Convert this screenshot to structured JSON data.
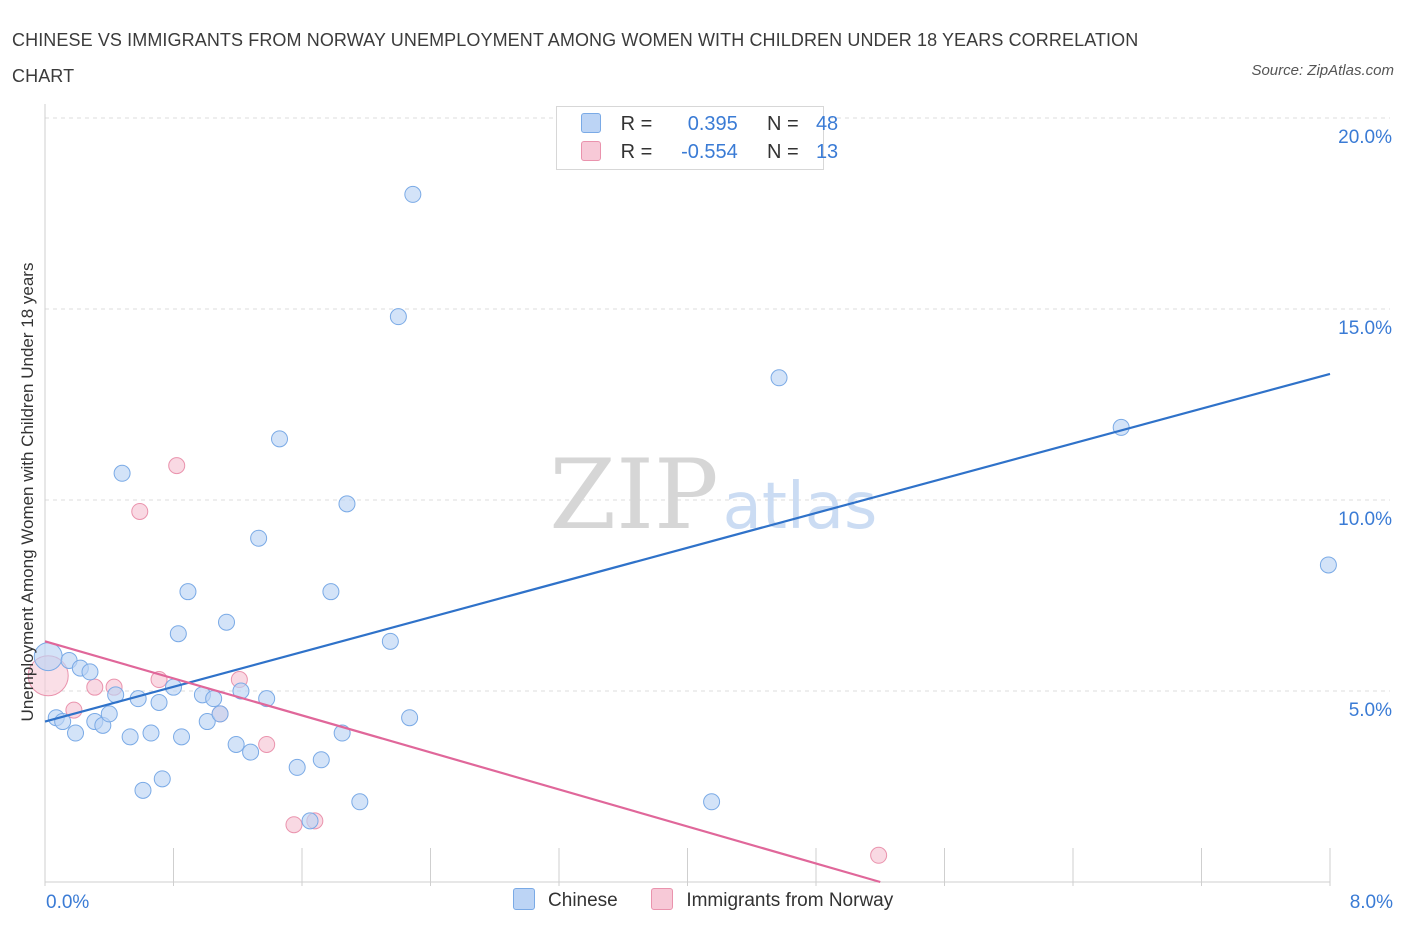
{
  "title": "CHINESE VS IMMIGRANTS FROM NORWAY UNEMPLOYMENT AMONG WOMEN WITH CHILDREN UNDER 18 YEARS CORRELATION CHART",
  "source": "Source: ZipAtlas.com",
  "watermark": {
    "zip": "ZIP",
    "atlas": "atlas"
  },
  "legend": {
    "rows": [
      {
        "r_label": "R =",
        "r_value": "0.395",
        "n_label": "N =",
        "n_value": "48"
      },
      {
        "r_label": "R =",
        "r_value": "-0.554",
        "n_label": "N =",
        "n_value": "13"
      }
    ]
  },
  "colors": {
    "blue_fill": "#bcd4f5",
    "blue_stroke": "#7aaae6",
    "blue_line": "#2f72c9",
    "pink_fill": "#f7c9d7",
    "pink_stroke": "#ea93ad",
    "pink_line": "#e0679a",
    "axis_text": "#3a7bd5",
    "grid": "#dcdcdc"
  },
  "chart_data": {
    "type": "scatter",
    "title": "CHINESE VS IMMIGRANTS FROM NORWAY UNEMPLOYMENT AMONG WOMEN WITH CHILDREN UNDER 18 YEARS CORRELATION CHART",
    "xlabel": "",
    "ylabel": "Unemployment Among Women with Children Under 18 years",
    "xlim": [
      0,
      8
    ],
    "ylim": [
      0,
      20
    ],
    "x_tick_labels": [
      "0.0%",
      "8.0%"
    ],
    "y_ticks": [
      5,
      10,
      15,
      20
    ],
    "y_tick_labels": [
      "5.0%",
      "10.0%",
      "15.0%",
      "20.0%"
    ],
    "legend_position": "top-center",
    "series": [
      {
        "name": "Chinese",
        "color": "#bcd4f5",
        "r": 0.395,
        "n": 48,
        "points": [
          [
            0.02,
            5.9
          ],
          [
            0.07,
            4.3
          ],
          [
            0.11,
            4.2
          ],
          [
            0.15,
            5.8
          ],
          [
            0.19,
            3.9
          ],
          [
            0.22,
            5.6
          ],
          [
            0.28,
            5.5
          ],
          [
            0.31,
            4.2
          ],
          [
            0.36,
            4.1
          ],
          [
            0.4,
            4.4
          ],
          [
            0.44,
            4.9
          ],
          [
            0.48,
            10.7
          ],
          [
            0.53,
            3.8
          ],
          [
            0.58,
            4.8
          ],
          [
            0.61,
            2.4
          ],
          [
            0.66,
            3.9
          ],
          [
            0.71,
            4.7
          ],
          [
            0.73,
            2.7
          ],
          [
            0.8,
            5.1
          ],
          [
            0.83,
            6.5
          ],
          [
            0.85,
            3.8
          ],
          [
            0.89,
            7.6
          ],
          [
            0.98,
            4.9
          ],
          [
            1.01,
            4.2
          ],
          [
            1.05,
            4.8
          ],
          [
            1.09,
            4.4
          ],
          [
            1.13,
            6.8
          ],
          [
            1.19,
            3.6
          ],
          [
            1.22,
            5.0
          ],
          [
            1.28,
            3.4
          ],
          [
            1.33,
            9.0
          ],
          [
            1.38,
            4.8
          ],
          [
            1.46,
            11.6
          ],
          [
            1.57,
            3.0
          ],
          [
            1.65,
            1.6
          ],
          [
            1.72,
            3.2
          ],
          [
            1.78,
            7.6
          ],
          [
            1.85,
            3.9
          ],
          [
            1.88,
            9.9
          ],
          [
            1.96,
            2.1
          ],
          [
            2.15,
            6.3
          ],
          [
            2.2,
            14.8
          ],
          [
            2.27,
            4.3
          ],
          [
            2.29,
            18.0
          ],
          [
            4.15,
            2.1
          ],
          [
            4.57,
            13.2
          ],
          [
            6.7,
            11.9
          ],
          [
            7.99,
            8.3
          ]
        ],
        "trend": {
          "x": [
            0,
            8
          ],
          "y": [
            4.2,
            13.3
          ]
        }
      },
      {
        "name": "Immigrants from Norway",
        "color": "#f7c9d7",
        "r": -0.554,
        "n": 13,
        "points": [
          [
            0.02,
            5.4
          ],
          [
            0.18,
            4.5
          ],
          [
            0.31,
            5.1
          ],
          [
            0.43,
            5.1
          ],
          [
            0.59,
            9.7
          ],
          [
            0.71,
            5.3
          ],
          [
            0.82,
            10.9
          ],
          [
            1.09,
            4.4
          ],
          [
            1.21,
            5.3
          ],
          [
            1.38,
            3.6
          ],
          [
            1.55,
            1.5
          ],
          [
            1.68,
            1.6
          ],
          [
            5.19,
            0.7
          ]
        ],
        "trend": {
          "x": [
            0,
            5.2
          ],
          "y": [
            6.3,
            0.0
          ]
        }
      }
    ]
  }
}
